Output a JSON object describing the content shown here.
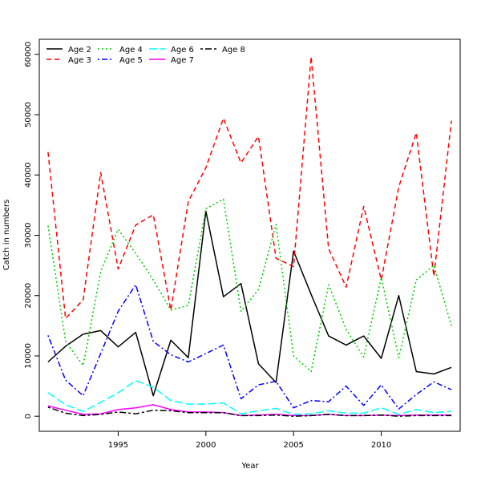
{
  "chart_data": {
    "type": "line",
    "xlabel": "Year",
    "ylabel": "Catch in numbers",
    "xlim": [
      1990.5,
      2014.5
    ],
    "ylim": [
      -2500,
      62500
    ],
    "x_ticks": [
      1995,
      2000,
      2005,
      2010
    ],
    "y_ticks": [
      0,
      10000,
      20000,
      30000,
      40000,
      50000,
      60000
    ],
    "grid": false,
    "legend_position": "top-left",
    "x": [
      1991,
      1992,
      1993,
      1994,
      1995,
      1996,
      1997,
      1998,
      1999,
      2000,
      2001,
      2002,
      2003,
      2004,
      2005,
      2006,
      2007,
      2008,
      2009,
      2010,
      2011,
      2012,
      2013,
      2014
    ],
    "series": [
      {
        "name": "Age 2",
        "color": "#000000",
        "dash": "solid",
        "values": [
          9000,
          11600,
          13600,
          14200,
          11500,
          13900,
          3400,
          12600,
          9700,
          34000,
          19800,
          22000,
          8700,
          5600,
          27400,
          20200,
          13300,
          11800,
          13300,
          9600,
          20000,
          7400,
          7000,
          8100
        ]
      },
      {
        "name": "Age 3",
        "color": "#ff0000",
        "dash": "dashed",
        "values": [
          43800,
          16200,
          19300,
          40400,
          24400,
          31700,
          33400,
          17600,
          35600,
          41200,
          49400,
          42000,
          46400,
          26200,
          24800,
          59600,
          27800,
          21400,
          34800,
          22600,
          38000,
          47000,
          23200,
          49000
        ]
      },
      {
        "name": "Age 4",
        "color": "#00cd00",
        "dash": "dotted",
        "values": [
          31600,
          12400,
          8400,
          24000,
          31000,
          27000,
          22600,
          17600,
          18400,
          34400,
          36000,
          17400,
          21000,
          31800,
          10000,
          7400,
          21800,
          14400,
          9800,
          23000,
          9700,
          22600,
          25000,
          15000
        ]
      },
      {
        "name": "Age 5",
        "color": "#0000ff",
        "dash": "dotdash",
        "values": [
          13400,
          6000,
          3400,
          10400,
          17400,
          21800,
          12400,
          10200,
          9000,
          10400,
          11800,
          2900,
          5200,
          5800,
          1400,
          2600,
          2400,
          5000,
          1800,
          5200,
          1200,
          3600,
          5700,
          4400
        ]
      },
      {
        "name": "Age 6",
        "color": "#00ffff",
        "dash": "longdash",
        "values": [
          3900,
          1900,
          800,
          2300,
          3900,
          5900,
          4800,
          2600,
          2000,
          2000,
          2200,
          400,
          900,
          1300,
          300,
          400,
          900,
          500,
          500,
          1400,
          300,
          1100,
          600,
          800
        ]
      },
      {
        "name": "Age 7",
        "color": "#ff00ff",
        "dash": "solid",
        "values": [
          1700,
          1000,
          300,
          400,
          1100,
          1400,
          1900,
          1100,
          700,
          700,
          600,
          100,
          200,
          300,
          100,
          100,
          300,
          100,
          100,
          200,
          100,
          200,
          200,
          200
        ]
      },
      {
        "name": "Age 8",
        "color": "#000000",
        "dash": "twodash",
        "values": [
          1500,
          500,
          100,
          300,
          700,
          400,
          1000,
          900,
          600,
          600,
          600,
          100,
          100,
          200,
          0,
          100,
          300,
          100,
          100,
          200,
          0,
          100,
          100,
          100
        ]
      }
    ]
  }
}
